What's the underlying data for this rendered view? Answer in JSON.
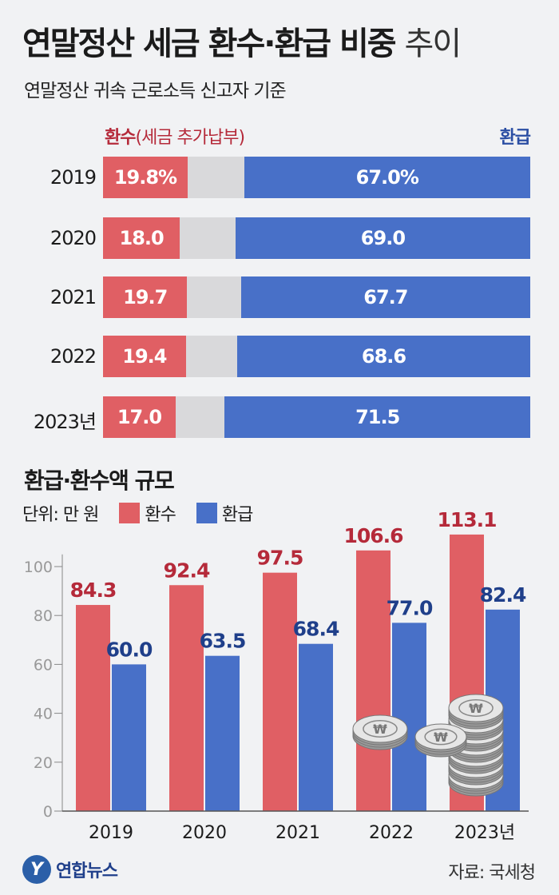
{
  "header": {
    "title_main": "연말정산 세금 환수·환급 비중",
    "title_suffix": "추이",
    "subtitle": "연말정산 귀속 근로소득 신고자 기준"
  },
  "stack_legend": {
    "left_bold": "환수",
    "left_note": "(세금 추가납부)",
    "right": "환급"
  },
  "colors": {
    "refund_back": "#e05f64",
    "refund": "#4870c8",
    "neutral": "#d9d9db",
    "back_label": "#b52a3a",
    "refund_label": "#1f3f8a"
  },
  "chart_data": [
    {
      "type": "bar",
      "stacked": true,
      "orientation": "horizontal",
      "categories": [
        "2019",
        "2020",
        "2021",
        "2022",
        "2023년"
      ],
      "series": [
        {
          "name": "환수",
          "labels": [
            "19.8%",
            "18.0",
            "19.7",
            "19.4",
            "17.0"
          ],
          "values": [
            19.8,
            18.0,
            19.7,
            19.4,
            17.0
          ]
        },
        {
          "name": "",
          "labels": [],
          "values": [
            13.2,
            13.0,
            12.6,
            12.0,
            11.5
          ]
        },
        {
          "name": "환급",
          "labels": [
            "67.0%",
            "69.0",
            "67.7",
            "68.6",
            "71.5"
          ],
          "values": [
            67.0,
            69.0,
            67.7,
            68.6,
            71.5
          ]
        }
      ],
      "xlim": [
        0,
        100
      ]
    },
    {
      "type": "bar",
      "title": "환급·환수액 규모",
      "unit": "단위: 만 원",
      "categories": [
        "2019",
        "2020",
        "2021",
        "2022",
        "2023년"
      ],
      "series": [
        {
          "name": "환수",
          "values": [
            84.3,
            92.4,
            97.5,
            106.6,
            113.1
          ]
        },
        {
          "name": "환급",
          "values": [
            60.0,
            63.5,
            68.4,
            77.0,
            82.4
          ]
        }
      ],
      "value_labels": {
        "환수": [
          "84.3",
          "92.4",
          "97.5",
          "106.6",
          "113.1"
        ],
        "환급": [
          "60.0",
          "63.5",
          "68.4",
          "77.0",
          "82.4"
        ]
      },
      "ylim": [
        0,
        120
      ],
      "yticks": [
        "0",
        "20",
        "40",
        "60",
        "80",
        "100"
      ],
      "grid": false,
      "legend": "top-left"
    }
  ],
  "footer": {
    "logo_mark": "Y",
    "logo": "연합뉴스",
    "source": "자료: 국세청"
  },
  "icons": [
    "coin-stack-icon",
    "coin-icon"
  ]
}
